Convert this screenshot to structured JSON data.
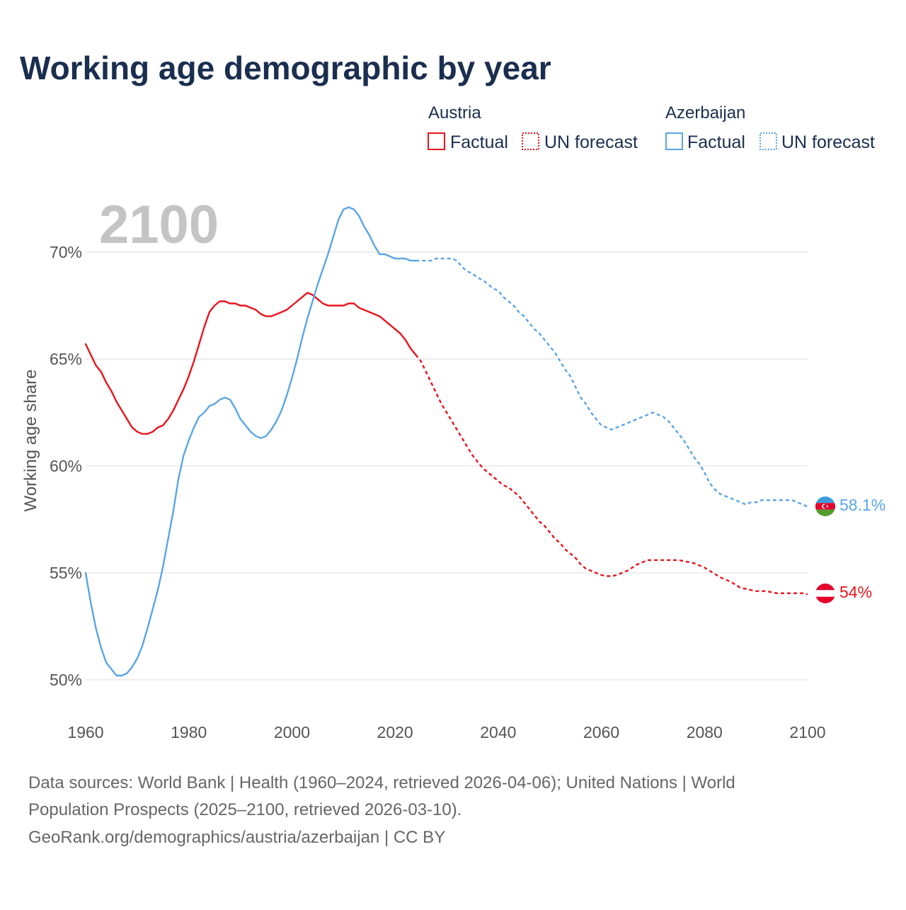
{
  "chart_data": {
    "type": "line",
    "title": "Working age demographic by year",
    "ylabel": "Working age share",
    "xlabel": "",
    "year_overlay": "2100",
    "xlim": [
      1960,
      2100
    ],
    "ylim": [
      50,
      71
    ],
    "x_ticks": [
      {
        "value": 1960,
        "label": "1960"
      },
      {
        "value": 1980,
        "label": "1980"
      },
      {
        "value": 2000,
        "label": "2000"
      },
      {
        "value": 2020,
        "label": "2020"
      },
      {
        "value": 2040,
        "label": "2040"
      },
      {
        "value": 2060,
        "label": "2060"
      },
      {
        "value": 2080,
        "label": "2080"
      },
      {
        "value": 2100,
        "label": "2100"
      }
    ],
    "y_ticks": [
      {
        "value": 50,
        "label": "50%"
      },
      {
        "value": 55,
        "label": "55%"
      },
      {
        "value": 60,
        "label": "60%"
      },
      {
        "value": 65,
        "label": "65%"
      },
      {
        "value": 70,
        "label": "70%"
      }
    ],
    "legend": {
      "groups": [
        {
          "name": "Austria",
          "color": "#e8141c",
          "factual_label": "Factual",
          "forecast_label": "UN forecast"
        },
        {
          "name": "Azerbaijan",
          "color": "#5aa5e6",
          "factual_label": "Factual",
          "forecast_label": "UN forecast"
        }
      ]
    },
    "series": [
      {
        "name": "Austria",
        "color": "#e8141c",
        "end_label": "54%",
        "factual_end_year": 2024,
        "x": [
          1960,
          1961,
          1962,
          1963,
          1964,
          1965,
          1966,
          1967,
          1968,
          1969,
          1970,
          1971,
          1972,
          1973,
          1974,
          1975,
          1976,
          1977,
          1978,
          1979,
          1980,
          1981,
          1982,
          1983,
          1984,
          1985,
          1986,
          1987,
          1988,
          1989,
          1990,
          1991,
          1992,
          1993,
          1994,
          1995,
          1996,
          1997,
          1998,
          1999,
          2000,
          2001,
          2002,
          2003,
          2004,
          2005,
          2006,
          2007,
          2008,
          2009,
          2010,
          2011,
          2012,
          2013,
          2014,
          2015,
          2016,
          2017,
          2018,
          2019,
          2020,
          2021,
          2022,
          2023,
          2024,
          2025,
          2026,
          2027,
          2028,
          2029,
          2030,
          2031,
          2032,
          2033,
          2034,
          2035,
          2036,
          2037,
          2038,
          2039,
          2040,
          2041,
          2042,
          2043,
          2044,
          2045,
          2046,
          2047,
          2048,
          2049,
          2050,
          2051,
          2052,
          2053,
          2054,
          2055,
          2056,
          2057,
          2058,
          2059,
          2060,
          2061,
          2062,
          2063,
          2064,
          2065,
          2066,
          2067,
          2068,
          2069,
          2070,
          2071,
          2072,
          2073,
          2074,
          2075,
          2076,
          2077,
          2078,
          2079,
          2080,
          2081,
          2082,
          2083,
          2084,
          2085,
          2086,
          2087,
          2088,
          2089,
          2090,
          2091,
          2092,
          2093,
          2094,
          2095,
          2096,
          2097,
          2098,
          2099,
          2100
        ],
        "values": [
          65.7,
          65.2,
          64.7,
          64.4,
          63.9,
          63.5,
          63.0,
          62.6,
          62.2,
          61.8,
          61.6,
          61.5,
          61.5,
          61.6,
          61.8,
          61.9,
          62.2,
          62.6,
          63.1,
          63.6,
          64.2,
          64.9,
          65.7,
          66.5,
          67.2,
          67.5,
          67.7,
          67.7,
          67.6,
          67.6,
          67.5,
          67.5,
          67.4,
          67.3,
          67.1,
          67.0,
          67.0,
          67.1,
          67.2,
          67.3,
          67.5,
          67.7,
          67.9,
          68.1,
          68.0,
          67.8,
          67.6,
          67.5,
          67.5,
          67.5,
          67.5,
          67.6,
          67.6,
          67.4,
          67.3,
          67.2,
          67.1,
          67.0,
          66.8,
          66.6,
          66.4,
          66.2,
          65.9,
          65.5,
          65.2,
          64.9,
          64.4,
          63.9,
          63.4,
          62.9,
          62.5,
          62.1,
          61.7,
          61.3,
          60.9,
          60.5,
          60.2,
          59.9,
          59.7,
          59.5,
          59.3,
          59.1,
          59.0,
          58.8,
          58.6,
          58.3,
          58.0,
          57.7,
          57.4,
          57.2,
          56.9,
          56.6,
          56.4,
          56.1,
          55.9,
          55.7,
          55.4,
          55.2,
          55.1,
          55.0,
          54.9,
          54.85,
          54.85,
          54.9,
          55.0,
          55.1,
          55.25,
          55.4,
          55.5,
          55.6,
          55.6,
          55.6,
          55.6,
          55.6,
          55.6,
          55.6,
          55.55,
          55.5,
          55.45,
          55.35,
          55.25,
          55.1,
          54.95,
          54.8,
          54.7,
          54.6,
          54.45,
          54.3,
          54.25,
          54.2,
          54.15,
          54.15,
          54.15,
          54.1,
          54.05,
          54.05,
          54.05,
          54.05,
          54.05,
          54.05,
          54.0
        ]
      },
      {
        "name": "Azerbaijan",
        "color": "#5aa5e6",
        "end_label": "58.1%",
        "factual_end_year": 2024,
        "x": [
          1960,
          1961,
          1962,
          1963,
          1964,
          1965,
          1966,
          1967,
          1968,
          1969,
          1970,
          1971,
          1972,
          1973,
          1974,
          1975,
          1976,
          1977,
          1978,
          1979,
          1980,
          1981,
          1982,
          1983,
          1984,
          1985,
          1986,
          1987,
          1988,
          1989,
          1990,
          1991,
          1992,
          1993,
          1994,
          1995,
          1996,
          1997,
          1998,
          1999,
          2000,
          2001,
          2002,
          2003,
          2004,
          2005,
          2006,
          2007,
          2008,
          2009,
          2010,
          2011,
          2012,
          2013,
          2014,
          2015,
          2016,
          2017,
          2018,
          2019,
          2020,
          2021,
          2022,
          2023,
          2024,
          2025,
          2026,
          2027,
          2028,
          2029,
          2030,
          2031,
          2032,
          2033,
          2034,
          2035,
          2036,
          2037,
          2038,
          2039,
          2040,
          2041,
          2042,
          2043,
          2044,
          2045,
          2046,
          2047,
          2048,
          2049,
          2050,
          2051,
          2052,
          2053,
          2054,
          2055,
          2056,
          2057,
          2058,
          2059,
          2060,
          2061,
          2062,
          2063,
          2064,
          2065,
          2066,
          2067,
          2068,
          2069,
          2070,
          2071,
          2072,
          2073,
          2074,
          2075,
          2076,
          2077,
          2078,
          2079,
          2080,
          2081,
          2082,
          2083,
          2084,
          2085,
          2086,
          2087,
          2088,
          2089,
          2090,
          2091,
          2092,
          2093,
          2094,
          2095,
          2096,
          2097,
          2098,
          2099,
          2100
        ],
        "values": [
          55.0,
          53.6,
          52.4,
          51.5,
          50.8,
          50.5,
          50.2,
          50.2,
          50.3,
          50.6,
          51.0,
          51.6,
          52.4,
          53.3,
          54.2,
          55.3,
          56.6,
          57.9,
          59.4,
          60.5,
          61.2,
          61.8,
          62.3,
          62.5,
          62.8,
          62.9,
          63.1,
          63.2,
          63.1,
          62.7,
          62.2,
          61.9,
          61.6,
          61.4,
          61.3,
          61.4,
          61.7,
          62.1,
          62.6,
          63.3,
          64.1,
          65.0,
          66.0,
          66.9,
          67.7,
          68.5,
          69.2,
          69.9,
          70.7,
          71.5,
          72.0,
          72.1,
          72.0,
          71.7,
          71.2,
          70.8,
          70.3,
          69.9,
          69.9,
          69.8,
          69.7,
          69.7,
          69.7,
          69.6,
          69.6,
          69.6,
          69.6,
          69.6,
          69.7,
          69.7,
          69.7,
          69.7,
          69.6,
          69.3,
          69.1,
          69.0,
          68.8,
          68.7,
          68.5,
          68.3,
          68.2,
          67.9,
          67.7,
          67.5,
          67.2,
          67.0,
          66.7,
          66.4,
          66.2,
          65.9,
          65.6,
          65.3,
          64.9,
          64.5,
          64.2,
          63.7,
          63.2,
          62.9,
          62.5,
          62.2,
          61.9,
          61.8,
          61.7,
          61.8,
          61.9,
          62.0,
          62.1,
          62.2,
          62.3,
          62.4,
          62.5,
          62.4,
          62.3,
          62.1,
          61.8,
          61.5,
          61.2,
          60.8,
          60.4,
          60.1,
          59.7,
          59.2,
          58.9,
          58.7,
          58.6,
          58.5,
          58.4,
          58.3,
          58.2,
          58.3,
          58.3,
          58.4,
          58.4,
          58.4,
          58.4,
          58.4,
          58.4,
          58.4,
          58.3,
          58.2,
          58.1
        ]
      }
    ]
  },
  "footer": {
    "line1": "Data sources: World Bank | Health (1960–2024, retrieved 2026-04-06); United Nations | World",
    "line2": "Population Prospects (2025–2100, retrieved 2026-03-10).",
    "line3": "GeoRank.org/demographics/austria/azerbaijan | CC BY"
  }
}
